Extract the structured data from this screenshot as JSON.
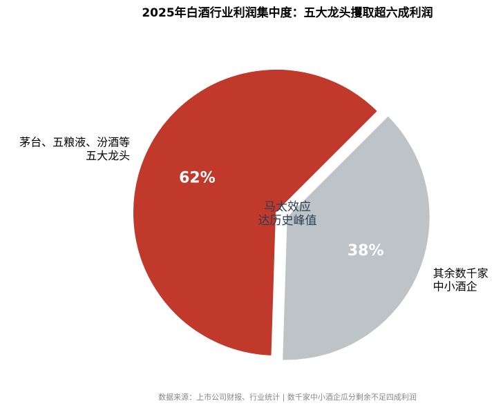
{
  "chart_data": {
    "type": "pie",
    "title": "2025年白酒行业利润集中度：五大龙头攫取超六成利润",
    "categories": [
      "茅台、五粮液、汾酒等\n五大龙头",
      "其余数千家\n中小酒企"
    ],
    "values": [
      62,
      38
    ],
    "value_labels": [
      "62%",
      "38%"
    ],
    "colors": [
      "#c0392b",
      "#bdc3c7"
    ],
    "annotation": "马太效应\n达历史峰值",
    "source": "数据来源：上市公司财报、行业统计 | 数千家中小酒企瓜分剩余不足四成利润"
  }
}
